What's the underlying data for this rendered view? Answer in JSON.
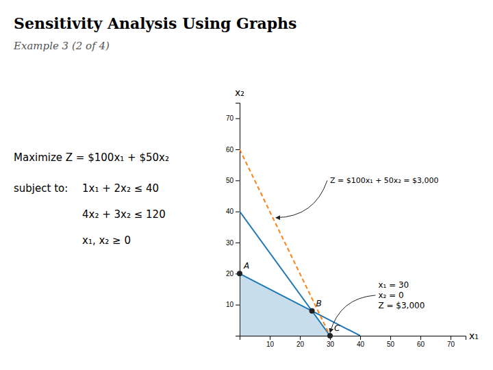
{
  "chart_data": {
    "type": "line",
    "title": "Sensitivity Analysis Using Graphs",
    "subtitle": "Example 3 (2 of 4)",
    "formulation": {
      "objective": "Maximize Z = $100x₁ + $50x₂",
      "label": "subject to:",
      "constraints": [
        "1x₁ + 2x₂ ≤ 40",
        "4x₂ + 3x₂ ≤ 120",
        "x₁, x₂ ≥ 0"
      ]
    },
    "xlabel": "x₁",
    "ylabel": "x₂",
    "xlim": [
      0,
      75
    ],
    "ylim": [
      0,
      75
    ],
    "xticks": [
      10,
      20,
      30,
      40,
      50,
      60,
      70
    ],
    "yticks": [
      10,
      20,
      30,
      40,
      50,
      60,
      70
    ],
    "series": [
      {
        "type": "area",
        "x": [
          0,
          0,
          24,
          30
        ],
        "values": [
          0,
          20,
          8,
          0
        ]
      },
      {
        "type": "line",
        "x": [
          0,
          40
        ],
        "values": [
          20,
          0
        ]
      },
      {
        "type": "line",
        "x": [
          0,
          30
        ],
        "values": [
          40,
          0
        ]
      },
      {
        "type": "line",
        "x": [
          0,
          30
        ],
        "values": [
          60,
          0
        ],
        "line_style": "dashed"
      },
      {
        "type": "scatter",
        "x": [
          0,
          24,
          30
        ],
        "values": [
          20,
          8,
          0
        ],
        "labels": [
          "A",
          "B",
          "C"
        ],
        "marker": "circle"
      }
    ],
    "annotations": [
      {
        "text": "Z = $100x₁ + 50x₂ = $3,000",
        "x": 30,
        "y": 50,
        "arrow_to": [
          12,
          38
        ]
      },
      {
        "lines": [
          "x₁ = 30",
          "x₂ = 0",
          "Z = $3,000"
        ],
        "x": 46,
        "y": 18,
        "arrow_to": [
          30,
          1
        ]
      }
    ]
  }
}
